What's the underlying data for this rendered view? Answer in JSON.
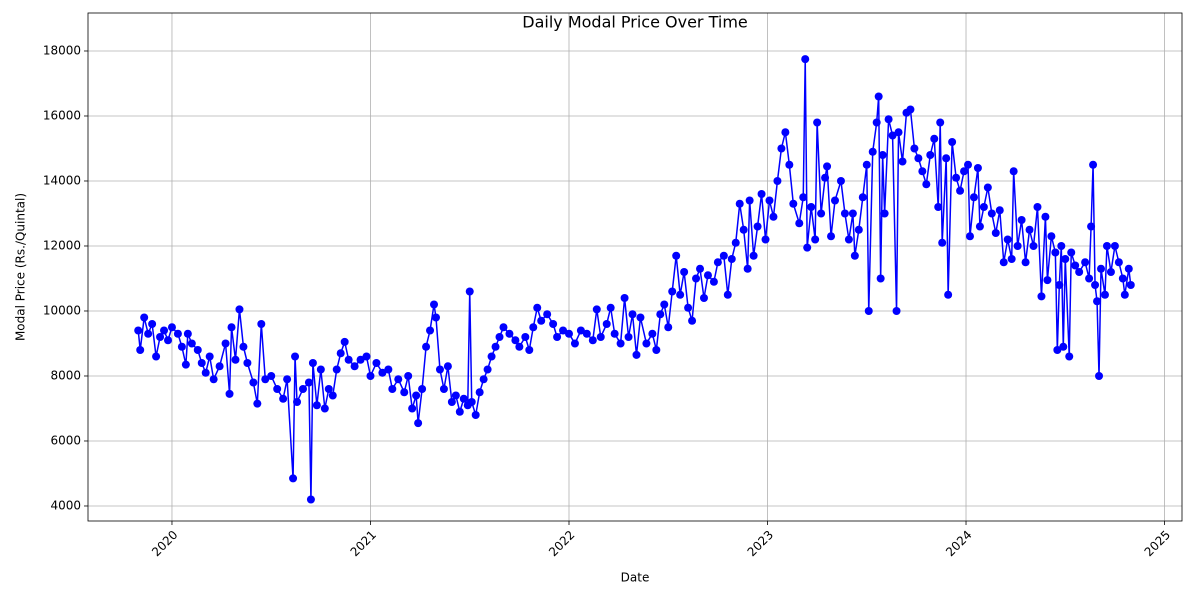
{
  "chart_data": {
    "type": "line",
    "title": "Daily Modal Price Over Time",
    "x_label": "Date",
    "y_label": "Modal Price (Rs./Quintal)",
    "x": [
      2019.83,
      2019.84,
      2019.86,
      2019.88,
      2019.9,
      2019.92,
      2019.94,
      2019.96,
      2019.98,
      2020.0,
      2020.03,
      2020.05,
      2020.07,
      2020.08,
      2020.1,
      2020.13,
      2020.15,
      2020.17,
      2020.19,
      2020.21,
      2020.24,
      2020.27,
      2020.29,
      2020.3,
      2020.32,
      2020.34,
      2020.36,
      2020.38,
      2020.41,
      2020.43,
      2020.45,
      2020.47,
      2020.5,
      2020.53,
      2020.56,
      2020.58,
      2020.61,
      2020.62,
      2020.63,
      2020.66,
      2020.69,
      2020.7,
      2020.71,
      2020.73,
      2020.75,
      2020.77,
      2020.79,
      2020.81,
      2020.83,
      2020.85,
      2020.87,
      2020.89,
      2020.92,
      2020.95,
      2020.98,
      2021.0,
      2021.03,
      2021.06,
      2021.09,
      2021.11,
      2021.14,
      2021.17,
      2021.19,
      2021.21,
      2021.23,
      2021.24,
      2021.26,
      2021.28,
      2021.3,
      2021.32,
      2021.33,
      2021.35,
      2021.37,
      2021.39,
      2021.41,
      2021.43,
      2021.45,
      2021.47,
      2021.49,
      2021.5,
      2021.51,
      2021.53,
      2021.55,
      2021.57,
      2021.59,
      2021.61,
      2021.63,
      2021.65,
      2021.67,
      2021.7,
      2021.73,
      2021.75,
      2021.78,
      2021.8,
      2021.82,
      2021.84,
      2021.86,
      2021.89,
      2021.92,
      2021.94,
      2021.97,
      2022.0,
      2022.03,
      2022.06,
      2022.09,
      2022.12,
      2022.14,
      2022.16,
      2022.19,
      2022.21,
      2022.23,
      2022.26,
      2022.28,
      2022.3,
      2022.32,
      2022.34,
      2022.36,
      2022.39,
      2022.42,
      2022.44,
      2022.46,
      2022.48,
      2022.5,
      2022.52,
      2022.54,
      2022.56,
      2022.58,
      2022.6,
      2022.62,
      2022.64,
      2022.66,
      2022.68,
      2022.7,
      2022.73,
      2022.75,
      2022.78,
      2022.8,
      2022.82,
      2022.84,
      2022.86,
      2022.88,
      2022.9,
      2022.91,
      2022.93,
      2022.95,
      2022.97,
      2022.99,
      2023.01,
      2023.03,
      2023.05,
      2023.07,
      2023.09,
      2023.11,
      2023.13,
      2023.16,
      2023.18,
      2023.19,
      2023.2,
      2023.22,
      2023.24,
      2023.25,
      2023.27,
      2023.29,
      2023.3,
      2023.32,
      2023.34,
      2023.37,
      2023.39,
      2023.41,
      2023.43,
      2023.44,
      2023.46,
      2023.48,
      2023.5,
      2023.51,
      2023.53,
      2023.55,
      2023.56,
      2023.57,
      2023.58,
      2023.59,
      2023.61,
      2023.63,
      2023.65,
      2023.66,
      2023.68,
      2023.7,
      2023.72,
      2023.74,
      2023.76,
      2023.78,
      2023.8,
      2023.82,
      2023.84,
      2023.86,
      2023.87,
      2023.88,
      2023.9,
      2023.91,
      2023.93,
      2023.95,
      2023.97,
      2023.99,
      2024.01,
      2024.02,
      2024.04,
      2024.06,
      2024.07,
      2024.09,
      2024.11,
      2024.13,
      2024.15,
      2024.17,
      2024.19,
      2024.21,
      2024.23,
      2024.24,
      2024.26,
      2024.28,
      2024.3,
      2024.32,
      2024.34,
      2024.36,
      2024.38,
      2024.4,
      2024.41,
      2024.43,
      2024.45,
      2024.46,
      2024.47,
      2024.48,
      2024.49,
      2024.5,
      2024.52,
      2024.53,
      2024.55,
      2024.57,
      2024.6,
      2024.62,
      2024.63,
      2024.64,
      2024.65,
      2024.66,
      2024.67,
      2024.68,
      2024.7,
      2024.71,
      2024.73,
      2024.75,
      2024.77,
      2024.79,
      2024.8,
      2024.82,
      2024.83
    ],
    "series": [
      {
        "color": "#0000ff",
        "values": [
          9400,
          8800,
          9800,
          9300,
          9600,
          8600,
          9200,
          9400,
          9100,
          9500,
          9300,
          8900,
          8350,
          9300,
          9000,
          8800,
          8400,
          8100,
          8600,
          7900,
          8300,
          9000,
          7450,
          9500,
          8500,
          10050,
          8900,
          8400,
          7800,
          7150,
          9600,
          7900,
          8000,
          7600,
          7300,
          7900,
          4850,
          8600,
          7200,
          7600,
          7800,
          4200,
          8400,
          7100,
          8200,
          7000,
          7600,
          7400,
          8200,
          8700,
          9050,
          8500,
          8300,
          8500,
          8600,
          8000,
          8400,
          8100,
          8200,
          7600,
          7900,
          7500,
          8000,
          7000,
          7400,
          6550,
          7600,
          8900,
          9400,
          10200,
          9800,
          8200,
          7600,
          8300,
          7200,
          7400,
          6900,
          7300,
          7100,
          10600,
          7200,
          6800,
          7500,
          7900,
          8200,
          8600,
          8900,
          9200,
          9500,
          9300,
          9100,
          8900,
          9200,
          8800,
          9500,
          10100,
          9700,
          9900,
          9600,
          9200,
          9400,
          9300,
          9000,
          9400,
          9300,
          9100,
          10050,
          9200,
          9600,
          10100,
          9300,
          9000,
          10400,
          9200,
          9900,
          8650,
          9800,
          9000,
          9300,
          8800,
          9900,
          10200,
          9500,
          10600,
          11700,
          10500,
          11200,
          10100,
          9700,
          11000,
          11300,
          10400,
          11100,
          10900,
          11500,
          11700,
          10500,
          11600,
          12100,
          13300,
          12500,
          11300,
          13400,
          11700,
          12600,
          13600,
          12200,
          13400,
          12900,
          14000,
          15000,
          15500,
          14500,
          13300,
          12700,
          13500,
          17750,
          11950,
          13200,
          12200,
          15800,
          13000,
          14100,
          14450,
          12300,
          13400,
          14000,
          13000,
          12200,
          13000,
          11700,
          12500,
          13500,
          14500,
          10000,
          14900,
          15800,
          16600,
          11000,
          14800,
          13000,
          15900,
          15400,
          10000,
          15500,
          14600,
          16100,
          16200,
          15000,
          14700,
          14300,
          13900,
          14800,
          15300,
          13200,
          15800,
          12100,
          14700,
          10500,
          15200,
          14100,
          13700,
          14300,
          14500,
          12300,
          13500,
          14400,
          12600,
          13200,
          13800,
          13000,
          12400,
          13100,
          11500,
          12200,
          11600,
          14300,
          12000,
          12800,
          11500,
          12500,
          12000,
          13200,
          10450,
          12900,
          10950,
          12300,
          11800,
          8800,
          10800,
          12000,
          8900,
          11600,
          8600,
          11800,
          11400,
          11200,
          11500,
          11000,
          12600,
          14500,
          10800,
          10300,
          8000,
          11300,
          10500,
          12000,
          11200,
          12000,
          11500,
          11000,
          10500,
          11300,
          10800
        ]
      }
    ],
    "xlim": [
      2019.577,
      2025.088
    ],
    "xticks": [
      2020,
      2021,
      2022,
      2023,
      2024,
      2025
    ],
    "ylim": [
      3538,
      19169
    ],
    "yticks": [
      4000,
      6000,
      8000,
      10000,
      12000,
      14000,
      16000,
      18000
    ],
    "grid": true,
    "marker": "circle"
  }
}
